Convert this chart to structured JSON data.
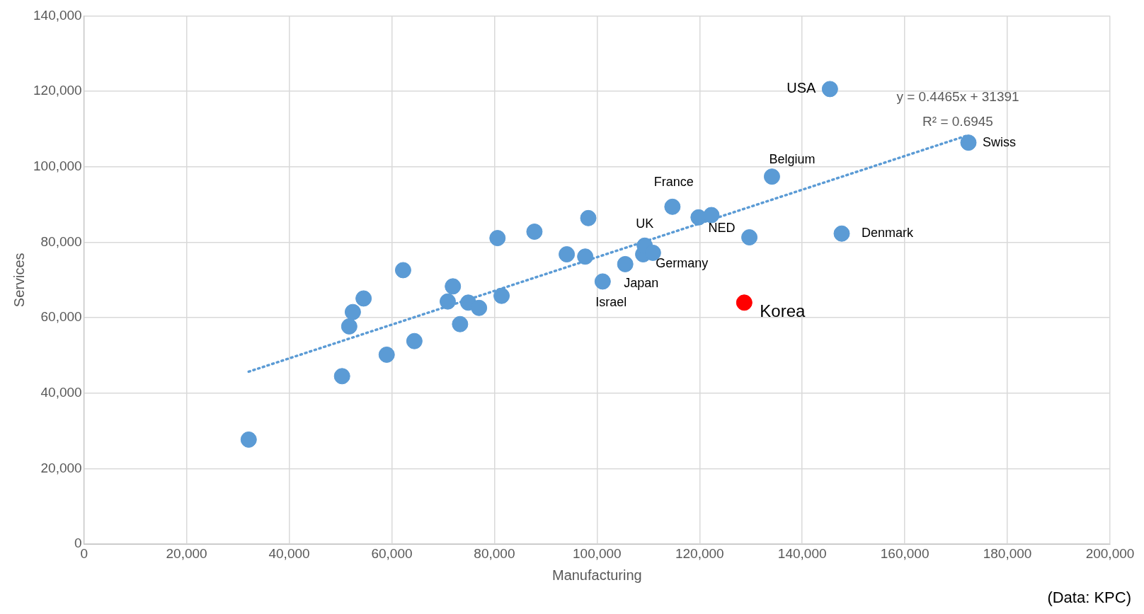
{
  "chart_data": {
    "type": "scatter",
    "xlabel": "Manufacturing",
    "ylabel": "Services",
    "xlim": [
      0,
      200000
    ],
    "ylim": [
      0,
      140000
    ],
    "xticks": [
      0,
      {
        "value": 20000,
        "label": "20,000"
      },
      {
        "value": 40000,
        "label": "40,000"
      },
      {
        "value": 60000,
        "label": "60,000"
      },
      {
        "value": 80000,
        "label": "80,000"
      },
      {
        "value": 100000,
        "label": "100,000"
      },
      {
        "value": 120000,
        "label": "120,000"
      },
      {
        "value": 140000,
        "label": "140,000"
      },
      {
        "value": 160000,
        "label": "160,000"
      },
      {
        "value": 180000,
        "label": "180,000"
      },
      {
        "value": 200000,
        "label": "200,000"
      }
    ],
    "yticks": [
      0,
      {
        "value": 20000,
        "label": "20,000"
      },
      {
        "value": 40000,
        "label": "40,000"
      },
      {
        "value": 60000,
        "label": "60,000"
      },
      {
        "value": 80000,
        "label": "80,000"
      },
      {
        "value": 100000,
        "label": "100,000"
      },
      {
        "value": 120000,
        "label": "120,000"
      },
      {
        "value": 140000,
        "label": "140,000"
      }
    ],
    "grid": true,
    "marker": "circle",
    "series": [
      {
        "type": "scatter",
        "color": "#5b9bd5",
        "x": [
          32100,
          50300,
          51700,
          52400,
          54500,
          59000,
          62200,
          64400,
          70900,
          71900,
          73300,
          74900,
          77000,
          80600,
          81400,
          87800,
          94100,
          97700,
          98300,
          101100,
          105500,
          109000,
          109300,
          110900,
          114700,
          119800,
          122300,
          129700,
          134100,
          145400,
          147700,
          172400
        ],
        "values": [
          27700,
          44500,
          57700,
          61500,
          65100,
          50200,
          72600,
          53800,
          64300,
          68300,
          58300,
          64000,
          62600,
          81100,
          65800,
          82800,
          76800,
          76200,
          86400,
          69600,
          74200,
          76800,
          79100,
          77200,
          89400,
          86600,
          87200,
          81300,
          97400,
          120600,
          82300,
          106400
        ]
      },
      {
        "type": "scatter",
        "color": "#ff0000",
        "x": [
          128700
        ],
        "values": [
          64000
        ]
      },
      {
        "type": "line",
        "color": "#5b9bd5",
        "x": [
          32100,
          172400
        ],
        "values": [
          45700,
          108400
        ],
        "line_style": "dotted",
        "marker": "none"
      }
    ],
    "annotations": [
      "y = 0.4465x + 31391",
      "R² = 0.6945",
      {
        "text": "USA",
        "x": 145400,
        "y": 120600
      },
      {
        "text": "Swiss",
        "x": 172400,
        "y": 106400
      },
      {
        "text": "Belgium",
        "x": 134100,
        "y": 97400
      },
      {
        "text": "France",
        "x": 114700,
        "y": 89400
      },
      {
        "text": "UK",
        "x": 109300,
        "y": 79100
      },
      {
        "text": "NED",
        "x": 129700,
        "y": 81300
      },
      {
        "text": "Denmark",
        "x": 147700,
        "y": 82300
      },
      {
        "text": "Germany",
        "x": 110900,
        "y": 77200
      },
      {
        "text": "Japan",
        "x": 105500,
        "y": 74200
      },
      {
        "text": "Israel",
        "x": 101100,
        "y": 69600
      },
      {
        "text": "Korea",
        "x": 128700,
        "y": 64000
      },
      "(Data: KPC)"
    ]
  }
}
